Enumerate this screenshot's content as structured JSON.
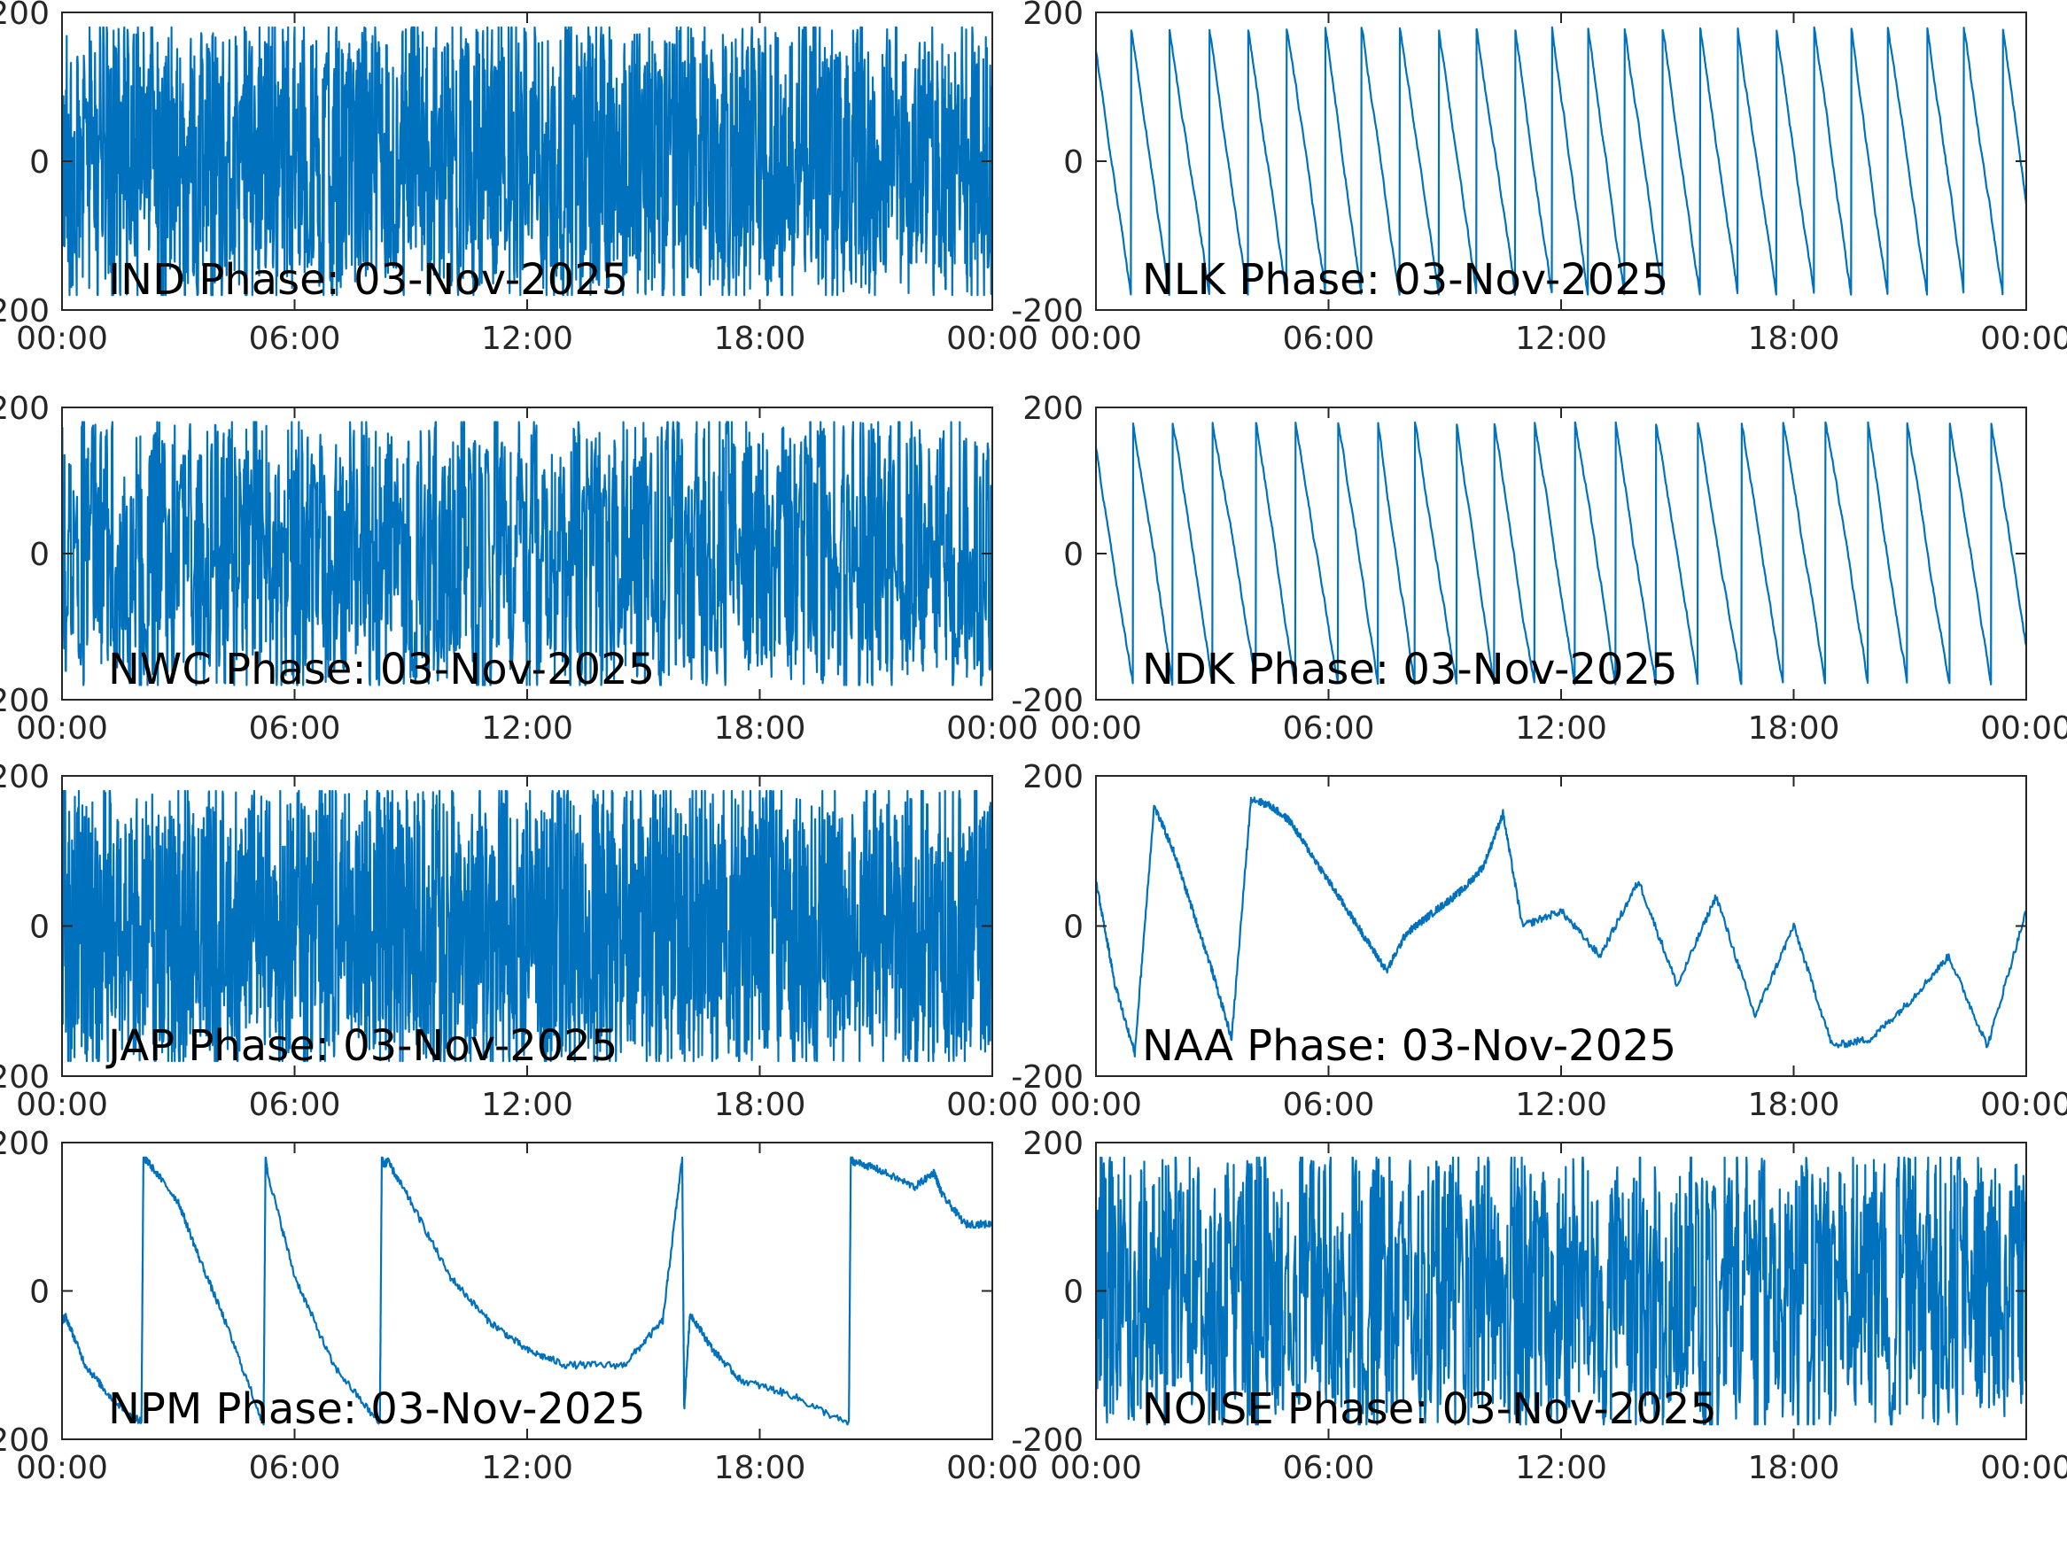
{
  "figure": {
    "line_color": "#0072BD",
    "axis_color": "#262626",
    "background": "#ffffff"
  },
  "chart_data": [
    {
      "type": "line",
      "title": "IND Phase: 03-Nov-2025",
      "xlabel": "",
      "ylabel": "",
      "xlim": [
        "00:00",
        "24:00"
      ],
      "x_ticks": [
        "00:00",
        "06:00",
        "12:00",
        "18:00",
        "00:00"
      ],
      "ylim": [
        -200,
        200
      ],
      "y_ticks": [
        "-200",
        "0",
        "200"
      ],
      "grid": false,
      "pattern": "noise",
      "series": [
        {
          "wrap_rate_per_hour": 14,
          "jitter_deg": 60
        }
      ]
    },
    {
      "type": "line",
      "title": "NLK Phase: 03-Nov-2025",
      "xlabel": "",
      "ylabel": "",
      "xlim": [
        "00:00",
        "24:00"
      ],
      "x_ticks": [
        "00:00",
        "06:00",
        "12:00",
        "18:00",
        "00:00"
      ],
      "ylim": [
        -200,
        200
      ],
      "y_ticks": [
        "-200",
        "0",
        "200"
      ],
      "grid": false,
      "pattern": "sawtooth",
      "series": [
        {
          "x_hours": [
            0,
            0.9,
            1.8,
            2.6,
            3.4,
            4.2,
            5.0,
            6.0,
            6.5,
            7.8,
            9.0,
            10.2,
            11.4,
            12.6,
            13.8,
            14.6,
            15.4,
            16.2,
            17.4,
            18.8,
            20.0,
            21.2,
            22.4,
            24.0
          ],
          "drift_deg_per_hour": -370
        }
      ]
    },
    {
      "type": "line",
      "title": "NWC Phase: 03-Nov-2025",
      "xlabel": "",
      "ylabel": "",
      "xlim": [
        "00:00",
        "24:00"
      ],
      "x_ticks": [
        "00:00",
        "06:00",
        "12:00",
        "18:00",
        "00:00"
      ],
      "ylim": [
        -200,
        200
      ],
      "y_ticks": [
        "-200",
        "0",
        "200"
      ],
      "grid": false,
      "pattern": "noise",
      "series": [
        {
          "wrap_rate_per_hour": 10,
          "jitter_deg": 55
        }
      ]
    },
    {
      "type": "line",
      "title": "NDK Phase: 03-Nov-2025",
      "xlabel": "",
      "ylabel": "",
      "xlim": [
        "00:00",
        "24:00"
      ],
      "x_ticks": [
        "00:00",
        "06:00",
        "12:00",
        "18:00",
        "00:00"
      ],
      "ylim": [
        -200,
        200
      ],
      "y_ticks": [
        "-200",
        "0",
        "200"
      ],
      "grid": false,
      "pattern": "sawtooth",
      "series": [
        {
          "x_hours": [
            0,
            0.9,
            1.8,
            2.6,
            3.4,
            4.2,
            5.2,
            6.3,
            7.5,
            8.8,
            10.0,
            11.2,
            12.3,
            13.3,
            14.2,
            15.2,
            16.4,
            17.6,
            18.8,
            20.0,
            21.2,
            22.4,
            24.0
          ],
          "drift_deg_per_hour": -340
        }
      ]
    },
    {
      "type": "line",
      "title": "JAP Phase: 03-Nov-2025",
      "xlabel": "",
      "ylabel": "",
      "xlim": [
        "00:00",
        "24:00"
      ],
      "x_ticks": [
        "00:00",
        "06:00",
        "12:00",
        "18:00",
        "00:00"
      ],
      "ylim": [
        -200,
        200
      ],
      "y_ticks": [
        "-200",
        "0",
        "200"
      ],
      "grid": false,
      "pattern": "noise",
      "series": [
        {
          "wrap_rate_per_hour": 16,
          "jitter_deg": 70
        }
      ]
    },
    {
      "type": "line",
      "title": "NAA Phase: 03-Nov-2025",
      "xlabel": "",
      "ylabel": "",
      "xlim": [
        "00:00",
        "24:00"
      ],
      "x_ticks": [
        "00:00",
        "06:00",
        "12:00",
        "18:00",
        "00:00"
      ],
      "ylim": [
        -200,
        200
      ],
      "y_ticks": [
        "-200",
        "0",
        "200"
      ],
      "grid": false,
      "pattern": "segments",
      "series": [
        {
          "x_hours": [
            0,
            0.5,
            1.0,
            1.5,
            2.0,
            2.5,
            3.0,
            3.5,
            4.0,
            4.5,
            5.0,
            5.5,
            6.0,
            6.5,
            7.0,
            7.5,
            8.0,
            8.5,
            9.0,
            9.5,
            10.0,
            10.5,
            11.0,
            12.0,
            13.0,
            14.0,
            15.0,
            16.0,
            17.0,
            18.0,
            19.0,
            20.0,
            21.0,
            22.0,
            23.0,
            24.0
          ],
          "y": [
            60,
            -80,
            -170,
            160,
            100,
            20,
            -60,
            -150,
            170,
            160,
            140,
            100,
            60,
            20,
            -20,
            -60,
            -10,
            10,
            30,
            50,
            80,
            150,
            0,
            20,
            -40,
            60,
            -80,
            40,
            -120,
            0,
            -160,
            -150,
            -100,
            -40,
            -160,
            20
          ]
        }
      ]
    },
    {
      "type": "line",
      "title": "NPM Phase: 03-Nov-2025",
      "xlabel": "",
      "ylabel": "",
      "xlim": [
        "00:00",
        "24:00"
      ],
      "x_ticks": [
        "00:00",
        "06:00",
        "12:00",
        "18:00",
        "00:00"
      ],
      "ylim": [
        -200,
        200
      ],
      "y_ticks": [
        "-200",
        "0",
        "200"
      ],
      "grid": false,
      "pattern": "segments",
      "series": [
        {
          "x_hours": [
            0.0,
            0.1,
            0.6,
            1.2,
            1.8,
            2.05,
            2.1,
            2.2,
            3.0,
            3.5,
            4.2,
            5.2,
            5.25,
            5.3,
            6.0,
            7.0,
            8.2,
            8.25,
            8.3,
            8.4,
            9.0,
            10.0,
            11.0,
            12.0,
            13.0,
            14.5,
            15.5,
            16.0,
            16.05,
            16.2,
            16.8,
            17.5,
            18.8,
            20.3,
            20.35,
            20.4,
            21.0,
            22.0,
            22.5,
            22.7,
            23.3,
            24.0
          ],
          "y": [
            -40,
            -35,
            -100,
            -140,
            -170,
            -175,
            180,
            175,
            120,
            50,
            -40,
            -180,
            180,
            160,
            20,
            -100,
            -180,
            180,
            170,
            175,
            120,
            20,
            -40,
            -80,
            -100,
            -100,
            -40,
            180,
            -160,
            -30,
            -80,
            -120,
            -140,
            -180,
            180,
            175,
            165,
            140,
            160,
            130,
            90,
            90
          ]
        }
      ]
    },
    {
      "type": "line",
      "title": "NOISE Phase: 03-Nov-2025",
      "xlabel": "",
      "ylabel": "",
      "xlim": [
        "00:00",
        "24:00"
      ],
      "x_ticks": [
        "00:00",
        "06:00",
        "12:00",
        "18:00",
        "00:00"
      ],
      "ylim": [
        -200,
        200
      ],
      "y_ticks": [
        "-200",
        "0",
        "200"
      ],
      "grid": false,
      "pattern": "noise",
      "series": [
        {
          "wrap_rate_per_hour": 9,
          "jitter_deg": 50
        }
      ]
    }
  ]
}
